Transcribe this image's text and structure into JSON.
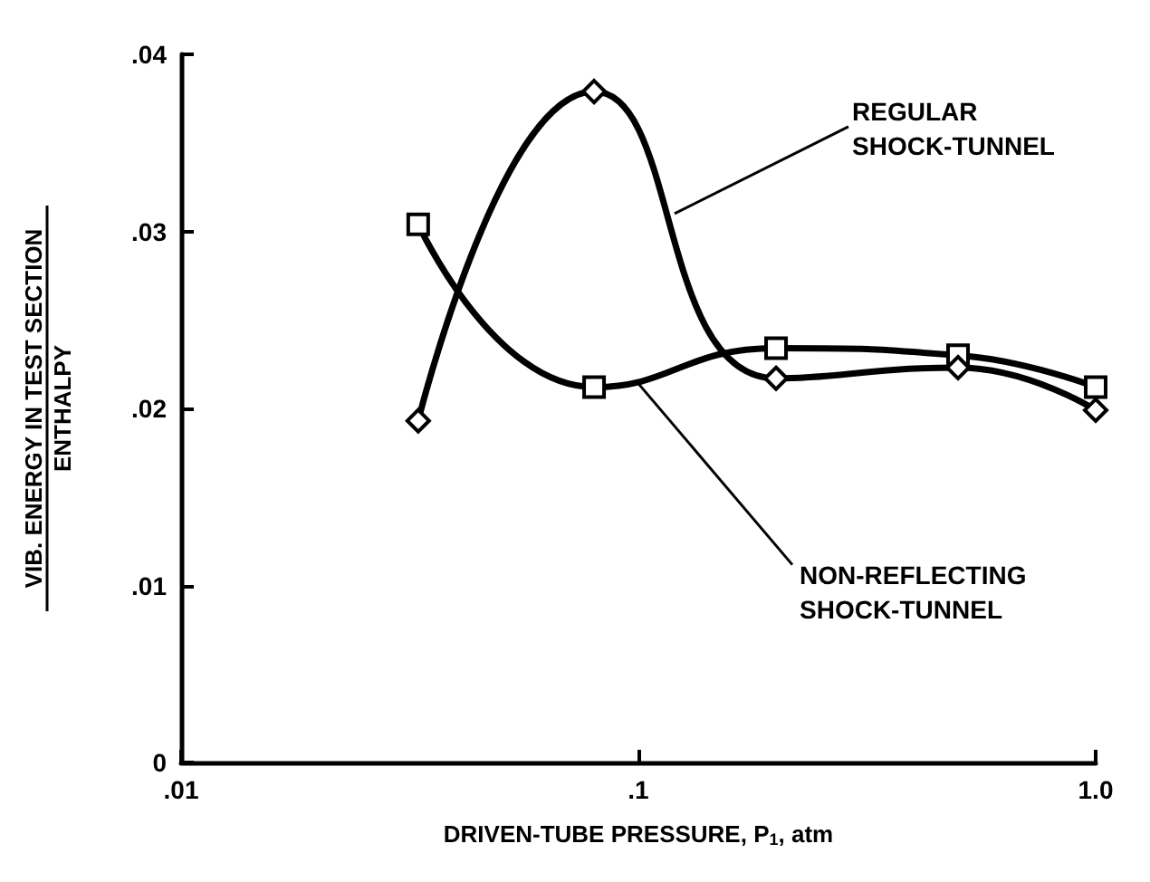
{
  "chart_data": {
    "type": "line",
    "xlabel": "DRIVEN-TUBE PRESSURE, P$_{1}$, atm",
    "ylabel": "VIB. ENERGY IN TEST SECTION\nENTHALPY",
    "log": "x",
    "xlim": [
      0.01,
      1.0
    ],
    "xticks": [
      {
        "value": 0.01,
        "label": ".01"
      },
      {
        "value": 0.1,
        "label": ".1"
      },
      {
        "value": 1.0,
        "label": "1.0"
      }
    ],
    "ylim": [
      0,
      0.04
    ],
    "yticks": [
      0,
      {
        "value": 0.01,
        "label": ".01"
      },
      {
        "value": 0.02,
        "label": ".02"
      },
      {
        "value": 0.03,
        "label": ".03"
      },
      {
        "value": 0.04,
        "label": ".04"
      }
    ],
    "grid": false,
    "line_style": "solid",
    "x": [
      0.033,
      0.08,
      0.2,
      0.5,
      1.0
    ],
    "series": [
      {
        "color": "#000000",
        "marker": "diamond",
        "values": [
          0.0193,
          0.0379,
          0.0217,
          0.0223,
          0.0199
        ]
      },
      {
        "color": "#000000",
        "marker": "square",
        "values": [
          0.0304,
          0.0212,
          0.0234,
          0.023,
          0.0212
        ]
      }
    ],
    "annotations": [
      {
        "text": "REGULAR\nSHOCK-TUNNEL",
        "x": 0.12,
        "y": 0.031
      },
      {
        "text": "NON-REFLECTING\nSHOCK-TUNNEL",
        "x": 0.1,
        "y": 0.0214
      }
    ]
  }
}
